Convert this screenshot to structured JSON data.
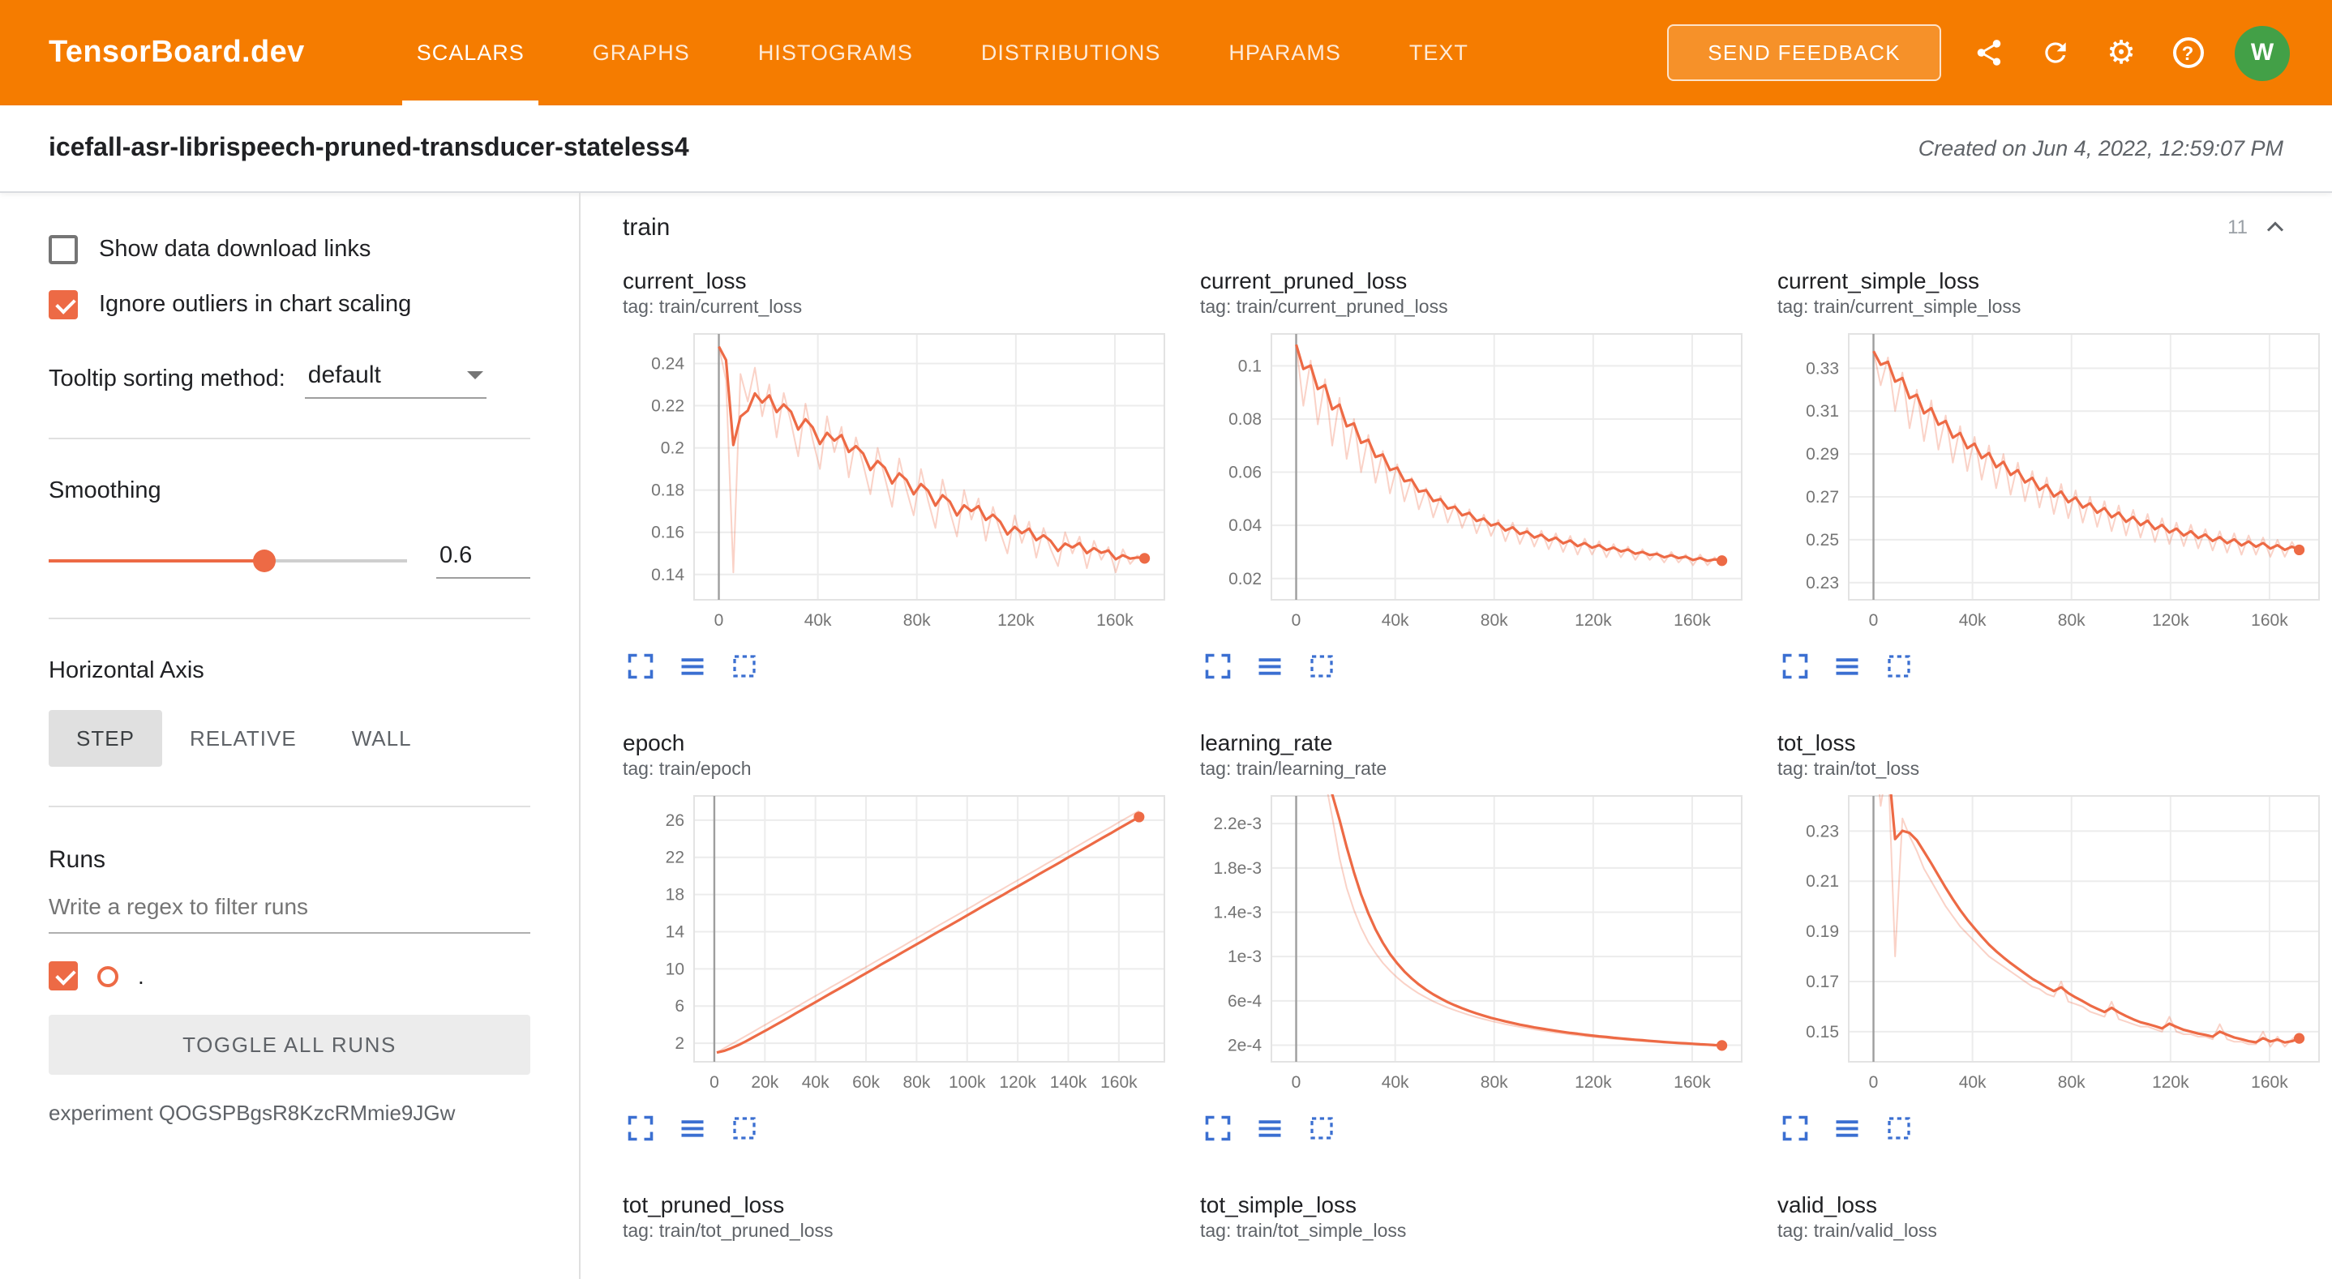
{
  "colors": {
    "header": "#f57c00",
    "accent": "#ed6a45",
    "icon_blue": "#3b6fd1",
    "avatar_bg": "#43a047"
  },
  "header": {
    "brand": "TensorBoard.dev",
    "tabs": [
      {
        "label": "SCALARS",
        "active": true
      },
      {
        "label": "GRAPHS",
        "active": false
      },
      {
        "label": "HISTOGRAMS",
        "active": false
      },
      {
        "label": "DISTRIBUTIONS",
        "active": false
      },
      {
        "label": "HPARAMS",
        "active": false
      },
      {
        "label": "TEXT",
        "active": false
      }
    ],
    "feedback_button": "SEND FEEDBACK",
    "help_label": "?",
    "avatar": "W"
  },
  "titlebar": {
    "experiment_title": "icefall-asr-librispeech-pruned-transducer-stateless4",
    "created": "Created on Jun 4, 2022, 12:59:07 PM"
  },
  "sidebar": {
    "show_download": {
      "label": "Show data download links",
      "checked": false
    },
    "ignore_outliers": {
      "label": "Ignore outliers in chart scaling",
      "checked": true
    },
    "tooltip_sorting": {
      "label": "Tooltip sorting method:",
      "value": "default"
    },
    "smoothing": {
      "label": "Smoothing",
      "value": "0.6",
      "fraction": 0.6
    },
    "horizontal_axis": {
      "label": "Horizontal Axis",
      "options": [
        {
          "label": "STEP",
          "active": true
        },
        {
          "label": "RELATIVE",
          "active": false
        },
        {
          "label": "WALL",
          "active": false
        }
      ]
    },
    "runs": {
      "label": "Runs",
      "filter_placeholder": "Write a regex to filter runs",
      "run_name": ".",
      "run_checked": true,
      "toggle_all": "TOGGLE ALL RUNS",
      "experiment": "experiment QOGSPBgsR8KzcRMmie9JGw"
    }
  },
  "main": {
    "section": {
      "title": "train",
      "count": "11"
    }
  },
  "chart_data": [
    {
      "type": "line",
      "title": "current_loss",
      "tag": "tag: train/current_loss",
      "xlim": [
        -10000,
        180000
      ],
      "ylim": [
        0.128,
        0.254
      ],
      "x_range": [
        0,
        172000
      ],
      "x_ticks": [
        {
          "v": 0,
          "label": "0"
        },
        {
          "v": 40000,
          "label": "40k"
        },
        {
          "v": 80000,
          "label": "80k"
        },
        {
          "v": 120000,
          "label": "120k"
        },
        {
          "v": 160000,
          "label": "160k"
        }
      ],
      "y_ticks": [
        {
          "v": 0.14,
          "label": "0.14"
        },
        {
          "v": 0.16,
          "label": "0.16"
        },
        {
          "v": 0.18,
          "label": "0.18"
        },
        {
          "v": 0.2,
          "label": "0.2"
        },
        {
          "v": 0.22,
          "label": "0.22"
        },
        {
          "v": 0.24,
          "label": "0.24"
        }
      ],
      "values": [
        0.248,
        0.232,
        0.141,
        0.235,
        0.222,
        0.238,
        0.215,
        0.23,
        0.205,
        0.226,
        0.212,
        0.196,
        0.221,
        0.204,
        0.19,
        0.215,
        0.198,
        0.21,
        0.186,
        0.205,
        0.192,
        0.178,
        0.2,
        0.186,
        0.172,
        0.195,
        0.18,
        0.168,
        0.19,
        0.175,
        0.162,
        0.185,
        0.17,
        0.158,
        0.18,
        0.166,
        0.176,
        0.156,
        0.172,
        0.16,
        0.15,
        0.168,
        0.155,
        0.165,
        0.148,
        0.162,
        0.152,
        0.144,
        0.16,
        0.15,
        0.158,
        0.143,
        0.156,
        0.147,
        0.153,
        0.141,
        0.152,
        0.145,
        0.149,
        0.147
      ],
      "end_dot": true
    },
    {
      "type": "line",
      "title": "current_pruned_loss",
      "tag": "tag: train/current_pruned_loss",
      "xlim": [
        -10000,
        180000
      ],
      "ylim": [
        0.012,
        0.112
      ],
      "x_range": [
        0,
        172000
      ],
      "x_ticks": [
        {
          "v": 0,
          "label": "0"
        },
        {
          "v": 40000,
          "label": "40k"
        },
        {
          "v": 80000,
          "label": "80k"
        },
        {
          "v": 120000,
          "label": "120k"
        },
        {
          "v": 160000,
          "label": "160k"
        }
      ],
      "y_ticks": [
        {
          "v": 0.02,
          "label": "0.02"
        },
        {
          "v": 0.04,
          "label": "0.04"
        },
        {
          "v": 0.06,
          "label": "0.06"
        },
        {
          "v": 0.08,
          "label": "0.08"
        },
        {
          "v": 0.1,
          "label": "0.1"
        }
      ],
      "values": [
        0.108,
        0.085,
        0.102,
        0.078,
        0.095,
        0.07,
        0.088,
        0.065,
        0.08,
        0.06,
        0.074,
        0.056,
        0.068,
        0.052,
        0.063,
        0.049,
        0.058,
        0.046,
        0.054,
        0.043,
        0.051,
        0.041,
        0.048,
        0.039,
        0.046,
        0.037,
        0.044,
        0.036,
        0.042,
        0.034,
        0.041,
        0.033,
        0.039,
        0.032,
        0.038,
        0.031,
        0.037,
        0.03,
        0.036,
        0.029,
        0.035,
        0.029,
        0.034,
        0.028,
        0.033,
        0.028,
        0.032,
        0.027,
        0.031,
        0.027,
        0.03,
        0.026,
        0.03,
        0.026,
        0.029,
        0.025,
        0.029,
        0.025,
        0.028,
        0.026
      ],
      "end_dot": true
    },
    {
      "type": "line",
      "title": "current_simple_loss",
      "tag": "tag: train/current_simple_loss",
      "xlim": [
        -10000,
        180000
      ],
      "ylim": [
        0.222,
        0.346
      ],
      "x_range": [
        0,
        172000
      ],
      "x_ticks": [
        {
          "v": 0,
          "label": "0"
        },
        {
          "v": 40000,
          "label": "40k"
        },
        {
          "v": 80000,
          "label": "80k"
        },
        {
          "v": 120000,
          "label": "120k"
        },
        {
          "v": 160000,
          "label": "160k"
        }
      ],
      "y_ticks": [
        {
          "v": 0.23,
          "label": "0.23"
        },
        {
          "v": 0.25,
          "label": "0.25"
        },
        {
          "v": 0.27,
          "label": "0.27"
        },
        {
          "v": 0.29,
          "label": "0.29"
        },
        {
          "v": 0.31,
          "label": "0.31"
        },
        {
          "v": 0.33,
          "label": "0.33"
        }
      ],
      "values": [
        0.338,
        0.322,
        0.335,
        0.31,
        0.328,
        0.302,
        0.32,
        0.296,
        0.315,
        0.292,
        0.308,
        0.286,
        0.303,
        0.282,
        0.298,
        0.278,
        0.294,
        0.274,
        0.29,
        0.271,
        0.286,
        0.268,
        0.282,
        0.265,
        0.279,
        0.262,
        0.276,
        0.26,
        0.273,
        0.258,
        0.27,
        0.256,
        0.268,
        0.254,
        0.266,
        0.252,
        0.264,
        0.251,
        0.262,
        0.249,
        0.26,
        0.248,
        0.258,
        0.247,
        0.257,
        0.246,
        0.255,
        0.245,
        0.254,
        0.244,
        0.253,
        0.243,
        0.252,
        0.243,
        0.251,
        0.242,
        0.25,
        0.242,
        0.249,
        0.243
      ],
      "end_dot": true
    },
    {
      "type": "line",
      "title": "epoch",
      "tag": "tag: train/epoch",
      "xlim": [
        -8000,
        178000
      ],
      "ylim": [
        0,
        28.6
      ],
      "x_range": [
        1000,
        168000
      ],
      "x_ticks": [
        {
          "v": 0,
          "label": "0"
        },
        {
          "v": 20000,
          "label": "20k"
        },
        {
          "v": 40000,
          "label": "40k"
        },
        {
          "v": 60000,
          "label": "60k"
        },
        {
          "v": 80000,
          "label": "80k"
        },
        {
          "v": 100000,
          "label": "100k"
        },
        {
          "v": 120000,
          "label": "120k"
        },
        {
          "v": 140000,
          "label": "140k"
        },
        {
          "v": 160000,
          "label": "160k"
        }
      ],
      "y_ticks": [
        {
          "v": 2,
          "label": "2"
        },
        {
          "v": 6,
          "label": "6"
        },
        {
          "v": 10,
          "label": "10"
        },
        {
          "v": 14,
          "label": "14"
        },
        {
          "v": 18,
          "label": "18"
        },
        {
          "v": 22,
          "label": "22"
        },
        {
          "v": 26,
          "label": "26"
        }
      ],
      "values": [
        1,
        1.44,
        1.88,
        2.32,
        2.76,
        3.2,
        3.64,
        4.08,
        4.53,
        4.97,
        5.41,
        5.85,
        6.29,
        6.73,
        7.17,
        7.61,
        8.05,
        8.49,
        8.93,
        9.37,
        9.81,
        10.25,
        10.7,
        11.14,
        11.58,
        12.02,
        12.46,
        12.9,
        13.34,
        13.78,
        14.22,
        14.66,
        15.1,
        15.54,
        15.98,
        16.42,
        16.87,
        17.31,
        17.75,
        18.19,
        18.63,
        19.07,
        19.51,
        19.95,
        20.39,
        20.83,
        21.27,
        21.71,
        22.15,
        22.59,
        23.03,
        23.47,
        23.92,
        24.36,
        24.8,
        25.24,
        25.68,
        26.12,
        26.56,
        27
      ],
      "end_dot": true
    },
    {
      "type": "line",
      "title": "learning_rate",
      "tag": "tag: train/learning_rate",
      "xlim": [
        -10000,
        180000
      ],
      "ylim": [
        5e-05,
        0.00245
      ],
      "x_range": [
        0,
        172000
      ],
      "x_ticks": [
        {
          "v": 0,
          "label": "0"
        },
        {
          "v": 40000,
          "label": "40k"
        },
        {
          "v": 80000,
          "label": "80k"
        },
        {
          "v": 120000,
          "label": "120k"
        },
        {
          "v": 160000,
          "label": "160k"
        }
      ],
      "y_ticks": [
        {
          "v": 0.0002,
          "label": "2e-4"
        },
        {
          "v": 0.0006,
          "label": "6e-4"
        },
        {
          "v": 0.001,
          "label": "1e-3"
        },
        {
          "v": 0.0014,
          "label": "1.4e-3"
        },
        {
          "v": 0.0018,
          "label": "1.8e-3"
        },
        {
          "v": 0.0022,
          "label": "2.2e-3"
        }
      ],
      "values": [
        0.0026,
        0.0026,
        0.0026,
        0.0026,
        0.0026,
        0.00226,
        0.00189,
        0.00162,
        0.00142,
        0.00126,
        0.00113,
        0.00103,
        0.000943,
        0.000872,
        0.000809,
        0.000755,
        0.000708,
        0.000666,
        0.000629,
        0.000596,
        0.000566,
        0.000539,
        0.000515,
        0.000493,
        0.000472,
        0.000453,
        0.000435,
        0.000419,
        0.000404,
        0.00039,
        0.000377,
        0.000365,
        0.000354,
        0.000343,
        0.000333,
        0.000323,
        0.000314,
        0.000306,
        0.000298,
        0.00029,
        0.000283,
        0.000276,
        0.00027,
        0.000263,
        0.000257,
        0.000252,
        0.000246,
        0.000241,
        0.000236,
        0.000231,
        0.000226,
        0.000222,
        0.000218,
        0.000214,
        0.00021,
        0.000206,
        0.000202,
        0.000199,
        0.000195,
        0.000192
      ],
      "end_dot": true
    },
    {
      "type": "line",
      "title": "tot_loss",
      "tag": "tag: train/tot_loss",
      "xlim": [
        -10000,
        180000
      ],
      "ylim": [
        0.138,
        0.244
      ],
      "x_range": [
        0,
        172000
      ],
      "x_ticks": [
        {
          "v": 0,
          "label": "0"
        },
        {
          "v": 40000,
          "label": "40k"
        },
        {
          "v": 80000,
          "label": "80k"
        },
        {
          "v": 120000,
          "label": "120k"
        },
        {
          "v": 160000,
          "label": "160k"
        }
      ],
      "y_ticks": [
        {
          "v": 0.15,
          "label": "0.15"
        },
        {
          "v": 0.17,
          "label": "0.17"
        },
        {
          "v": 0.19,
          "label": "0.19"
        },
        {
          "v": 0.21,
          "label": "0.21"
        },
        {
          "v": 0.23,
          "label": "0.23"
        }
      ],
      "values": [
        0.27,
        0.24,
        0.258,
        0.18,
        0.235,
        0.228,
        0.222,
        0.215,
        0.21,
        0.205,
        0.2,
        0.196,
        0.192,
        0.189,
        0.186,
        0.183,
        0.18,
        0.178,
        0.176,
        0.174,
        0.172,
        0.17,
        0.168,
        0.167,
        0.165,
        0.164,
        0.17,
        0.162,
        0.161,
        0.16,
        0.158,
        0.157,
        0.156,
        0.162,
        0.155,
        0.154,
        0.153,
        0.152,
        0.152,
        0.151,
        0.15,
        0.156,
        0.15,
        0.149,
        0.149,
        0.148,
        0.148,
        0.147,
        0.153,
        0.147,
        0.146,
        0.146,
        0.145,
        0.145,
        0.15,
        0.144,
        0.148,
        0.144,
        0.147,
        0.149
      ],
      "end_dot": true
    },
    {
      "type": "line",
      "title": "tot_pruned_loss",
      "tag": "tag: train/tot_pruned_loss",
      "partial": true,
      "values": []
    },
    {
      "type": "line",
      "title": "tot_simple_loss",
      "tag": "tag: train/tot_simple_loss",
      "partial": true,
      "values": []
    },
    {
      "type": "line",
      "title": "valid_loss",
      "tag": "tag: train/valid_loss",
      "partial": true,
      "values": []
    }
  ]
}
